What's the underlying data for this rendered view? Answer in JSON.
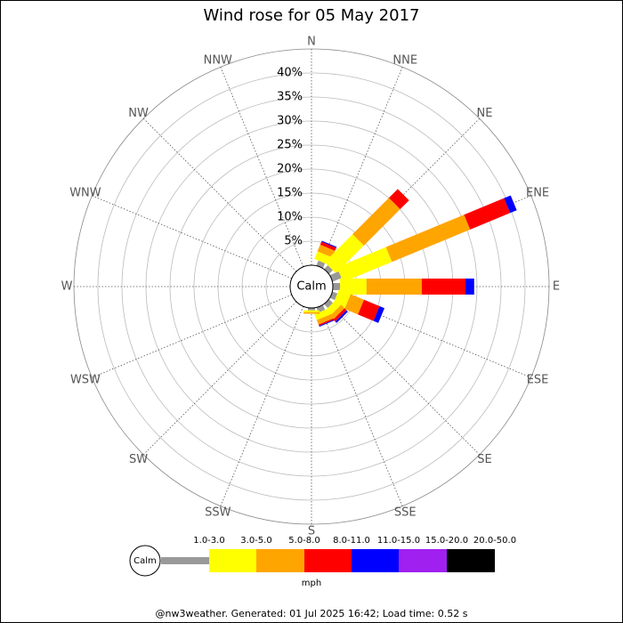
{
  "chart_data": {
    "type": "windrose",
    "title": "Wind rose for 05 May 2017",
    "directions": [
      "N",
      "NNE",
      "NE",
      "ENE",
      "E",
      "ESE",
      "SE",
      "SSE",
      "S",
      "SSW",
      "SW",
      "WSW",
      "W",
      "WNW",
      "NW",
      "NNW"
    ],
    "center_label": "Calm",
    "rlim": [
      0,
      45
    ],
    "rticks": [
      {
        "value": 5,
        "label": "5%"
      },
      {
        "value": 10,
        "label": "10%"
      },
      {
        "value": 15,
        "label": "15%"
      },
      {
        "value": 20,
        "label": "20%"
      },
      {
        "value": 25,
        "label": "25%"
      },
      {
        "value": 30,
        "label": "30%"
      },
      {
        "value": 35,
        "label": "35%"
      },
      {
        "value": 40,
        "label": "40%"
      }
    ],
    "series": [
      {
        "name": "1.0-3.0",
        "color": "#999999",
        "values": [
          0,
          1.1,
          1.1,
          2.0,
          1.5,
          1.1,
          1.1,
          1.1,
          0.5,
          0,
          0,
          0,
          0,
          0,
          0,
          0
        ]
      },
      {
        "name": "3.0-5.0",
        "color": "#ffff00",
        "values": [
          0,
          1.7,
          8.2,
          11.0,
          5.5,
          2.6,
          1.5,
          1.3,
          0.4,
          0,
          0,
          0,
          0,
          0,
          0,
          0
        ]
      },
      {
        "name": "5.0-8.0",
        "color": "#ffa500",
        "values": [
          0,
          1.5,
          10.7,
          17.6,
          11.5,
          3.0,
          1.0,
          1.0,
          0.3,
          0,
          0,
          0,
          0,
          0,
          0,
          0
        ]
      },
      {
        "name": "8.0-11.0",
        "color": "#ff0000",
        "values": [
          0,
          0.7,
          2.6,
          9.0,
          9.1,
          3.5,
          0.6,
          0.3,
          0,
          0,
          0,
          0,
          0,
          0,
          0,
          0
        ]
      },
      {
        "name": "11.0-15.0",
        "color": "#0000ff",
        "values": [
          0,
          0.2,
          0,
          1.5,
          1.8,
          1.1,
          0.4,
          0.2,
          0,
          0,
          0,
          0,
          0,
          0,
          0,
          0
        ]
      },
      {
        "name": "15.0-20.0",
        "color": "#a020f0",
        "values": [
          0,
          0,
          0,
          0,
          0,
          0,
          0,
          0,
          0,
          0,
          0,
          0,
          0,
          0,
          0,
          0
        ]
      },
      {
        "name": "20.0-50.0",
        "color": "#000000",
        "values": [
          0,
          0,
          0,
          0,
          0,
          0,
          0,
          0,
          0,
          0,
          0,
          0,
          0,
          0,
          0,
          0
        ]
      }
    ],
    "legend_unit": "mph",
    "footer": "@nw3weather. Generated: 01 Jul 2025 16:42; Load time: 0.52 s"
  }
}
